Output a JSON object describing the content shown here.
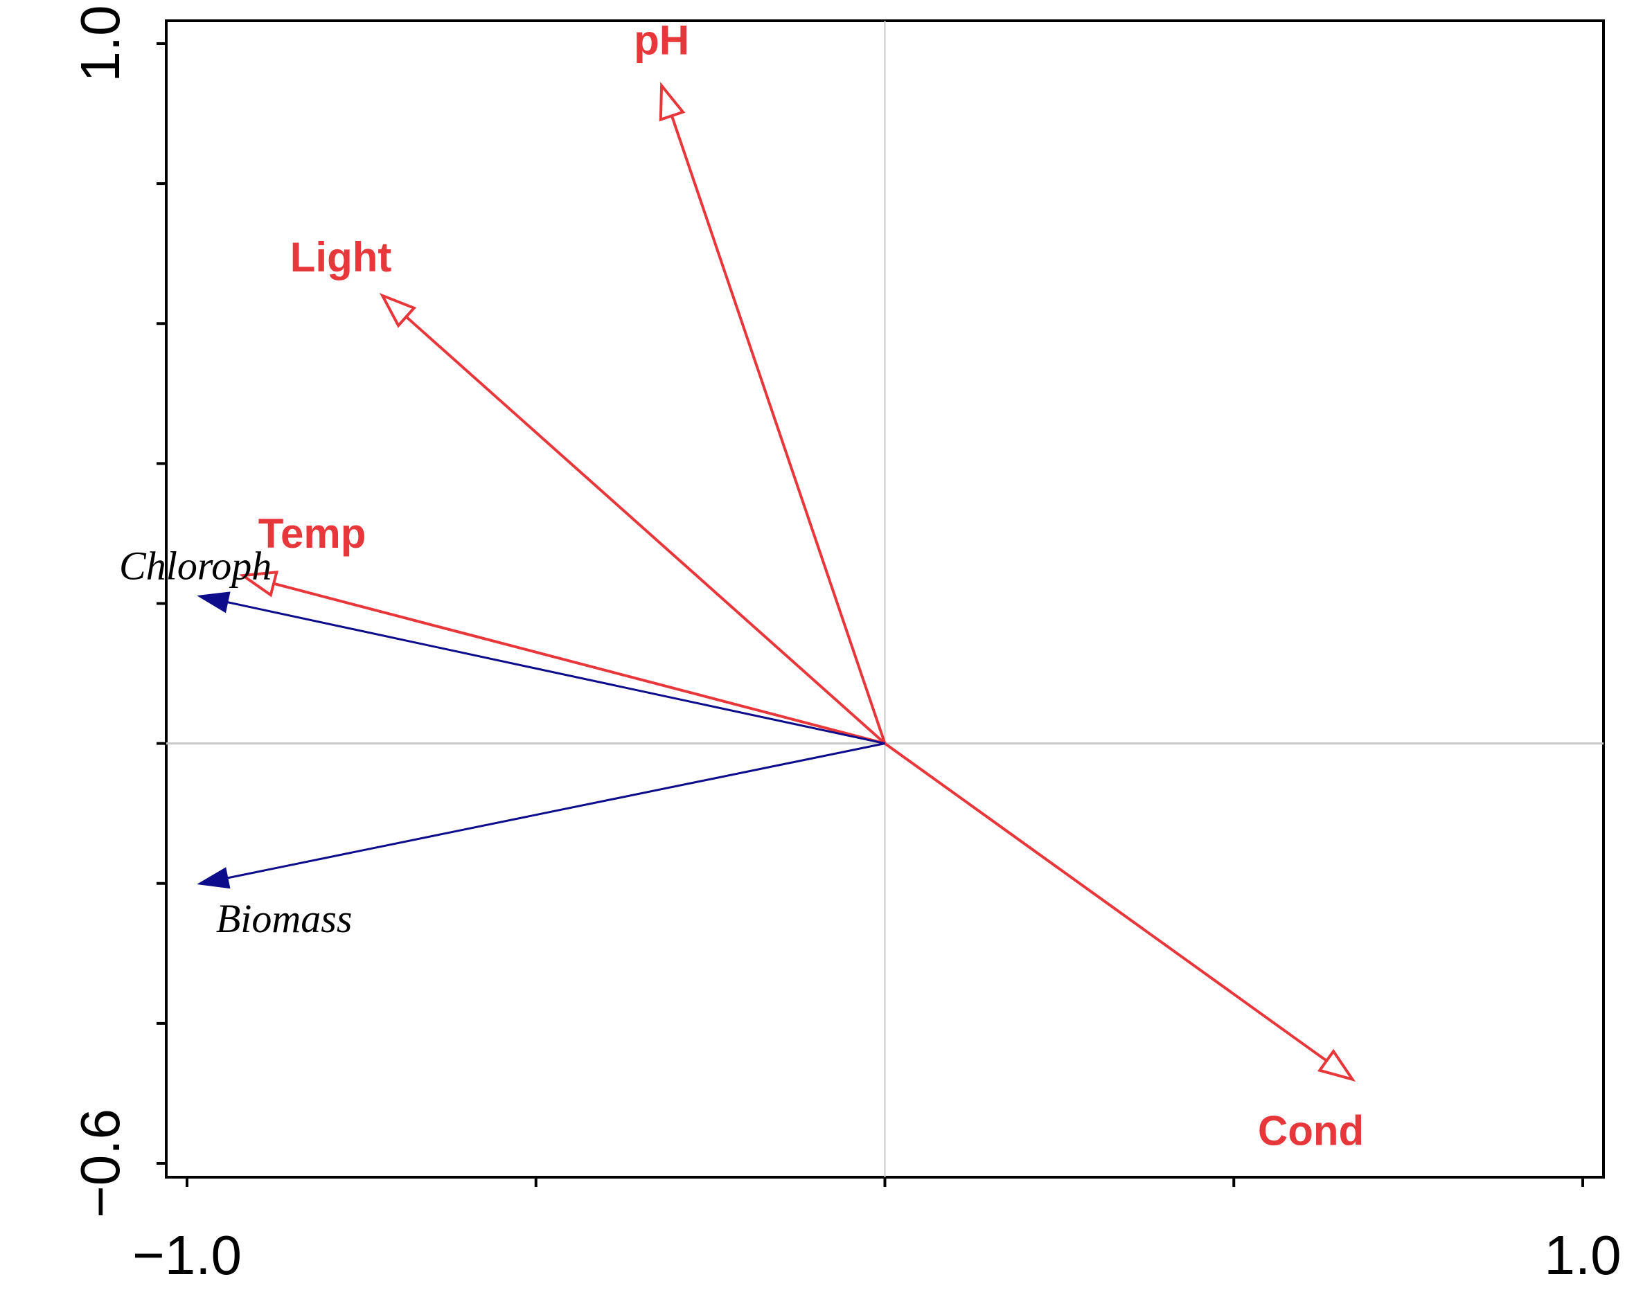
{
  "chart_data": {
    "type": "biplot",
    "xlim": [
      -1.0,
      1.0
    ],
    "ylim": [
      -0.6,
      1.0
    ],
    "x_tick_labels": [
      {
        "value": -1.0,
        "label": "−1.0"
      },
      {
        "value": 1.0,
        "label": "1.0"
      }
    ],
    "y_tick_labels": [
      {
        "value": 1.0,
        "label": "1.0"
      },
      {
        "value": -0.6,
        "label": "−0.6"
      }
    ],
    "x_minor_ticks": [
      -1.0,
      -0.5,
      0.0,
      0.5,
      1.0
    ],
    "y_minor_ticks": [
      1.0,
      0.8,
      0.6,
      0.4,
      0.2,
      0.0,
      -0.2,
      -0.4,
      -0.6
    ],
    "reference_lines": {
      "x": 0,
      "y": 0
    },
    "environmental_variables": [
      {
        "name": "pH",
        "x": -0.32,
        "y": 0.94
      },
      {
        "name": "Light",
        "x": -0.72,
        "y": 0.64
      },
      {
        "name": "Temp",
        "x": -0.92,
        "y": 0.24
      },
      {
        "name": "Cond",
        "x": 0.67,
        "y": -0.48
      }
    ],
    "response_variables": [
      {
        "name": "Chloroph",
        "x": -0.98,
        "y": 0.21
      },
      {
        "name": "Biomass",
        "x": -0.98,
        "y": -0.2
      }
    ],
    "colors": {
      "environmental": "#e8373a",
      "response": "#0d0d8c",
      "axis": "#000000",
      "reference": "#c8c8c8"
    }
  }
}
